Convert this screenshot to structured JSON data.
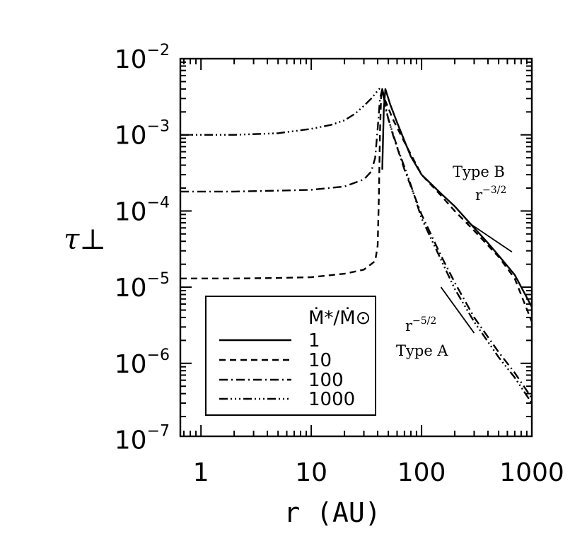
{
  "chart_data": {
    "type": "line",
    "xlabel": "r (AU)",
    "ylabel": "τ⊥",
    "x_scale": "log",
    "y_scale": "log",
    "xlim": [
      0.65,
      1000
    ],
    "ylim": [
      1.1e-07,
      0.01
    ],
    "x_ticks": [
      {
        "value": 1,
        "label": "1"
      },
      {
        "value": 10,
        "label": "10"
      },
      {
        "value": 100,
        "label": "100"
      },
      {
        "value": 1000,
        "label": "1000"
      }
    ],
    "y_ticks": [
      {
        "value": 1e-07,
        "base": "10",
        "exp": "−7"
      },
      {
        "value": 1e-06,
        "base": "10",
        "exp": "−6"
      },
      {
        "value": 1e-05,
        "base": "10",
        "exp": "−5"
      },
      {
        "value": 0.0001,
        "base": "10",
        "exp": "−4"
      },
      {
        "value": 0.001,
        "base": "10",
        "exp": "−3"
      },
      {
        "value": 0.01,
        "base": "10",
        "exp": "−2"
      }
    ],
    "legend": {
      "title": "Ṁ*/Ṁ⊙",
      "placement": "lower-left"
    },
    "series": [
      {
        "name": "1",
        "dash": "solid",
        "x": [
          44,
          45.5,
          47,
          52,
          60,
          80,
          100,
          150,
          200,
          300,
          400,
          500,
          700,
          1000
        ],
        "y": [
          0.00035,
          0.0022,
          0.004,
          0.0025,
          0.00145,
          0.00052,
          0.0003,
          0.00017,
          0.000115,
          6e-05,
          3.8e-05,
          2.6e-05,
          1.45e-05,
          5.5e-06
        ]
      },
      {
        "name": "10",
        "dash": "dash",
        "x": [
          0.65,
          2,
          5,
          10,
          20,
          30,
          38,
          40,
          41,
          42,
          43,
          44,
          45,
          46,
          47,
          55,
          70,
          100,
          150,
          200,
          300,
          500,
          700,
          1000
        ],
        "y": [
          1.3e-05,
          1.3e-05,
          1.32e-05,
          1.35e-05,
          1.5e-05,
          1.7e-05,
          2.2e-05,
          3.5e-05,
          0.00015,
          0.0011,
          0.0032,
          0.004,
          0.0035,
          0.003,
          0.0028,
          0.0016,
          0.0008,
          0.0003,
          0.00016,
          0.0001,
          5.5e-05,
          2.5e-05,
          1.3e-05,
          3.5e-06
        ]
      },
      {
        "name": "100",
        "dash": "dashdot",
        "x": [
          0.65,
          2,
          5,
          10,
          20,
          30,
          35,
          38,
          40,
          42,
          44,
          46,
          48,
          55,
          70,
          100,
          150,
          200,
          300,
          500,
          700,
          1000
        ],
        "y": [
          0.00018,
          0.00018,
          0.000185,
          0.00019,
          0.00021,
          0.00026,
          0.00033,
          0.0005,
          0.0012,
          0.003,
          0.004,
          0.0028,
          0.002,
          0.001,
          0.00035,
          9e-05,
          2.6e-05,
          1.15e-05,
          4e-06,
          1.4e-06,
          7.5e-07,
          3.5e-07
        ]
      },
      {
        "name": "1000",
        "dash": "dashdotdotdot",
        "x": [
          0.65,
          2,
          5,
          10,
          15,
          20,
          25,
          30,
          35,
          40,
          42,
          44,
          46,
          50,
          60,
          80,
          100,
          150,
          200,
          300,
          500,
          700,
          1000
        ],
        "y": [
          0.001,
          0.001,
          0.00105,
          0.0012,
          0.00135,
          0.00155,
          0.0019,
          0.0024,
          0.003,
          0.0038,
          0.0041,
          0.0038,
          0.0028,
          0.0016,
          0.0007,
          0.00022,
          8e-05,
          2.3e-05,
          9.5e-06,
          3.5e-06,
          1.2e-06,
          6.5e-07,
          3e-07
        ]
      }
    ],
    "annotations": [
      {
        "label": "Type B",
        "slope_base": "r",
        "slope_exp": "−3/2",
        "line_x": [
          260,
          660
        ],
        "line_y": [
          7.2e-05,
          2.9e-05
        ]
      },
      {
        "label": "Type A",
        "slope_base": "r",
        "slope_exp": "−5/2",
        "line_x": [
          150,
          300
        ],
        "line_y": [
          1e-05,
          2.5e-06
        ]
      }
    ]
  }
}
